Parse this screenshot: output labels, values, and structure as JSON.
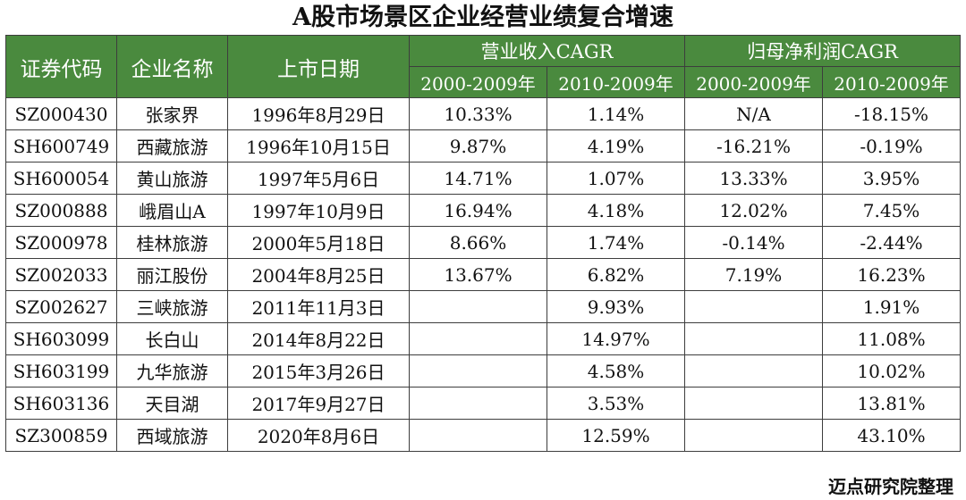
{
  "title": "A股市场景区企业经营业绩复合增速",
  "headers": {
    "code": "证券代码",
    "name": "企业名称",
    "date": "上市日期",
    "revenue_group": "营业收入CAGR",
    "profit_group": "归母净利润CAGR",
    "rev_p1": "2000-2009年",
    "rev_p2": "2010-2009年",
    "prof_p1": "2000-2009年",
    "prof_p2": "2010-2009年"
  },
  "rows": [
    {
      "code": "SZ000430",
      "name": "张家界",
      "date": "1996年8月29日",
      "rev1": "10.33%",
      "rev2": "1.14%",
      "prof1": "N/A",
      "prof2": "-18.15%"
    },
    {
      "code": "SH600749",
      "name": "西藏旅游",
      "date": "1996年10月15日",
      "rev1": "9.87%",
      "rev2": "4.19%",
      "prof1": "-16.21%",
      "prof2": "-0.19%"
    },
    {
      "code": "SH600054",
      "name": "黄山旅游",
      "date": "1997年5月6日",
      "rev1": "14.71%",
      "rev2": "1.07%",
      "prof1": "13.33%",
      "prof2": "3.95%"
    },
    {
      "code": "SZ000888",
      "name": "峨眉山A",
      "date": "1997年10月9日",
      "rev1": "16.94%",
      "rev2": "4.18%",
      "prof1": "12.02%",
      "prof2": "7.45%"
    },
    {
      "code": "SZ000978",
      "name": "桂林旅游",
      "date": "2000年5月18日",
      "rev1": "8.66%",
      "rev2": "1.74%",
      "prof1": "-0.14%",
      "prof2": "-2.44%"
    },
    {
      "code": "SZ002033",
      "name": "丽江股份",
      "date": "2004年8月25日",
      "rev1": "13.67%",
      "rev2": "6.82%",
      "prof1": "7.19%",
      "prof2": "16.23%"
    },
    {
      "code": "SZ002627",
      "name": "三峡旅游",
      "date": "2011年11月3日",
      "rev1": "",
      "rev2": "9.93%",
      "prof1": "",
      "prof2": "1.91%"
    },
    {
      "code": "SH603099",
      "name": "长白山",
      "date": "2014年8月22日",
      "rev1": "",
      "rev2": "14.97%",
      "prof1": "",
      "prof2": "11.08%"
    },
    {
      "code": "SH603199",
      "name": "九华旅游",
      "date": "2015年3月26日",
      "rev1": "",
      "rev2": "4.58%",
      "prof1": "",
      "prof2": "10.02%"
    },
    {
      "code": "SH603136",
      "name": "天目湖",
      "date": "2017年9月27日",
      "rev1": "",
      "rev2": "3.53%",
      "prof1": "",
      "prof2": "13.81%"
    },
    {
      "code": "SZ300859",
      "name": "西域旅游",
      "date": "2020年8月6日",
      "rev1": "",
      "rev2": "12.59%",
      "prof1": "",
      "prof2": "43.10%"
    }
  ],
  "footer": "迈点研究院整理",
  "colors": {
    "header_bg": "#4a8a3e",
    "header_text": "#ffffff",
    "border": "#3d3d3d"
  }
}
